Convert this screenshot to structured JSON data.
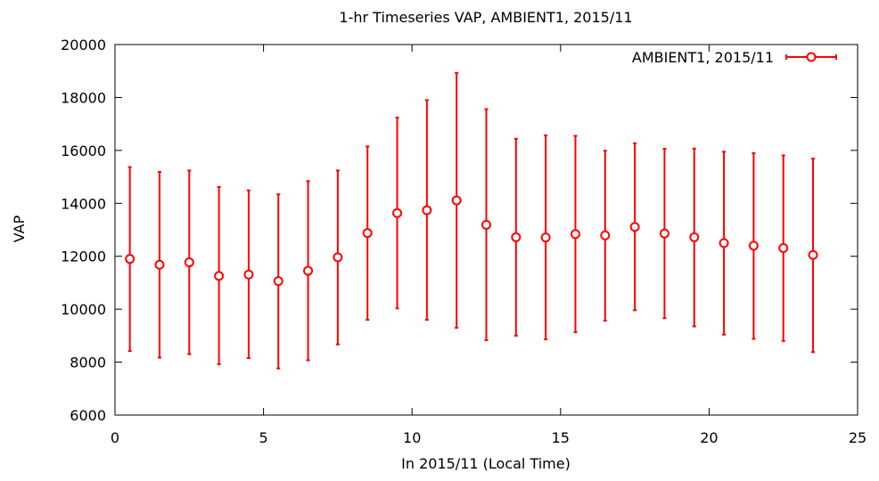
{
  "chart_data": {
    "type": "scatter",
    "title": "1-hr Timeseries VAP, AMBIENT1, 2015/11",
    "xlabel": "In 2015/11 (Local Time)",
    "ylabel": "VAP",
    "xlim": [
      0,
      25
    ],
    "ylim": [
      6000,
      20000
    ],
    "xticks": [
      0,
      5,
      10,
      15,
      20,
      25
    ],
    "yticks": [
      6000,
      8000,
      10000,
      12000,
      14000,
      16000,
      18000,
      20000
    ],
    "grid": false,
    "legend_position": "top-right",
    "series": [
      {
        "name": "AMBIENT1, 2015/11",
        "color": "#ff0000",
        "marker": "open-circle",
        "error_bars": true,
        "x": [
          0.5,
          1.5,
          2.5,
          3.5,
          4.5,
          5.5,
          6.5,
          7.5,
          8.5,
          9.5,
          10.5,
          11.5,
          12.5,
          13.5,
          14.5,
          15.5,
          16.5,
          17.5,
          18.5,
          19.5,
          20.5,
          21.5,
          22.5,
          23.5
        ],
        "y": [
          11900,
          11680,
          11770,
          11260,
          11310,
          11060,
          11450,
          11960,
          12880,
          13630,
          13740,
          14110,
          13190,
          12720,
          12710,
          12840,
          12790,
          13110,
          12860,
          12720,
          12500,
          12400,
          12310,
          12050
        ],
        "y_low": [
          8420,
          8170,
          8300,
          7920,
          8150,
          7760,
          8070,
          8670,
          9600,
          10030,
          9600,
          9300,
          8830,
          9000,
          8860,
          9130,
          9570,
          9960,
          9660,
          9350,
          9040,
          8880,
          8800,
          8380
        ],
        "y_high": [
          15370,
          15190,
          15240,
          14620,
          14490,
          14340,
          14840,
          15240,
          16150,
          17240,
          17900,
          18930,
          17560,
          16440,
          16570,
          16550,
          15990,
          16270,
          16060,
          16070,
          15950,
          15900,
          15810,
          15690
        ]
      }
    ]
  }
}
